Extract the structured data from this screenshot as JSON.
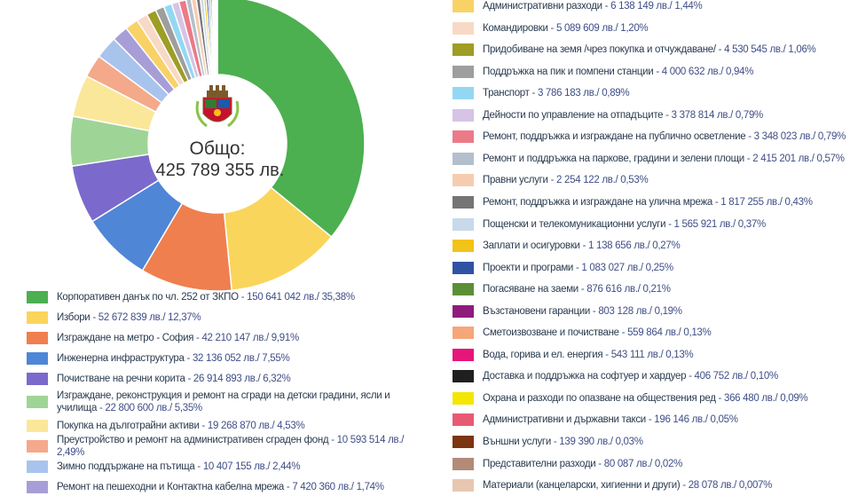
{
  "center": {
    "line1": "Общо:",
    "line2": "425 789 355 лв."
  },
  "chart_data": {
    "type": "pie",
    "total": "425 789 355 лв.",
    "slices": [
      {
        "name": "Корпоративен данък по чл. 252 от ЗКПО",
        "value_text": "150 641 042 лв./ 35,38%",
        "percent": 35.38,
        "color": "#4caf50"
      },
      {
        "name": "Избори",
        "value_text": "52 672 839 лв./ 12,37%",
        "percent": 12.37,
        "color": "#fad55c"
      },
      {
        "name": "Изграждане на метро - София",
        "value_text": "42 210 147 лв./ 9,91%",
        "percent": 9.91,
        "color": "#ef7f4f"
      },
      {
        "name": "Инженерна инфраструктура",
        "value_text": "32 136 052 лв./ 7,55%",
        "percent": 7.55,
        "color": "#4f86d6"
      },
      {
        "name": "Почистване на речни корита",
        "value_text": "26 914 893 лв./ 6,32%",
        "percent": 6.32,
        "color": "#7b6acb"
      },
      {
        "name": "Изграждане, реконструкция и ремонт на сгради на детски градини, ясли и училища",
        "value_text": "22 800 600 лв./ 5,35%",
        "percent": 5.35,
        "color": "#9fd497"
      },
      {
        "name": "Покупка на дълготрайни активи",
        "value_text": "19 268 870 лв./ 4,53%",
        "percent": 4.53,
        "color": "#fbe79a"
      },
      {
        "name": "Преустройство и ремонт на административен сграден фонд",
        "value_text": "10 593 514 лв./ 2,49%",
        "percent": 2.49,
        "color": "#f4a98a"
      },
      {
        "name": "Зимно поддържане на пътища",
        "value_text": "10 407 155 лв./ 2,44%",
        "percent": 2.44,
        "color": "#a9c4ec"
      },
      {
        "name": "Ремонт на пешеходни и Контактна кабелна мрежа",
        "value_text": "7 420 360 лв./ 1,74%",
        "percent": 1.74,
        "color": "#a79ed8"
      },
      {
        "name": "Административни разходи",
        "value_text": "6 138 149 лв./ 1,44%",
        "percent": 1.44,
        "color": "#f9d267"
      },
      {
        "name": "Командировки",
        "value_text": "5 089 609 лв./ 1,20%",
        "percent": 1.2,
        "color": "#f8d9c6"
      },
      {
        "name": "Придобиване на земя /чрез покупка и отчуждаване/",
        "value_text": "4 530 545 лв./ 1,06%",
        "percent": 1.06,
        "color": "#9e9d24"
      },
      {
        "name": "Поддръжка на пик и помпени станции",
        "value_text": "4 000 632 лв./ 0,94%",
        "percent": 0.94,
        "color": "#9e9e9e"
      },
      {
        "name": "Транспорт",
        "value_text": "3 786 183 лв./ 0,89%",
        "percent": 0.89,
        "color": "#93d8f3"
      },
      {
        "name": "Дейности по управление на отпадъците",
        "value_text": "3 378 814 лв./ 0,79%",
        "percent": 0.79,
        "color": "#d5c4e6"
      },
      {
        "name": "Ремонт, поддръжка и изграждане на публично осветление",
        "value_text": "3 348 023 лв./ 0,79%",
        "percent": 0.79,
        "color": "#ec7a88"
      },
      {
        "name": "Ремонт и поддръжка на паркове, градини и зелени площи",
        "value_text": "2 415 201 лв./ 0,57%",
        "percent": 0.57,
        "color": "#b3bfcc"
      },
      {
        "name": "Правни услуги",
        "value_text": "2 254 122 лв./ 0,53%",
        "percent": 0.53,
        "color": "#f6ccb0"
      },
      {
        "name": "Ремонт, поддръжка и изграждане на улична мрежа",
        "value_text": "1 817 255 лв./ 0,43%",
        "percent": 0.43,
        "color": "#757575"
      },
      {
        "name": "Пощенски и телекомуникационни услуги",
        "value_text": "1 565 921 лв./ 0,37%",
        "percent": 0.37,
        "color": "#c7d9ea"
      },
      {
        "name": "Заплати и осигуровки",
        "value_text": "1 138 656 лв./ 0,27%",
        "percent": 0.27,
        "color": "#f2c318"
      },
      {
        "name": "Проекти и програми",
        "value_text": "1 083 027 лв./ 0,25%",
        "percent": 0.25,
        "color": "#2f52a4"
      },
      {
        "name": "Погасяване на заеми",
        "value_text": "876 616 лв./ 0,21%",
        "percent": 0.21,
        "color": "#5b8f37"
      },
      {
        "name": "Възстановени гаранции",
        "value_text": "803 128 лв./ 0,19%",
        "percent": 0.19,
        "color": "#8e1c7c"
      },
      {
        "name": "Сметоизвозване и почистване",
        "value_text": "559 864 лв./ 0,13%",
        "percent": 0.13,
        "color": "#f5a77a"
      },
      {
        "name": "Вода, горива и ел. енергия",
        "value_text": "543 111 лв./ 0,13%",
        "percent": 0.13,
        "color": "#e6157a"
      },
      {
        "name": "Доставка и поддръжка на софтуер и хардуер",
        "value_text": "406 752 лв./ 0,10%",
        "percent": 0.1,
        "color": "#1f1f1f"
      },
      {
        "name": "Охрана и разходи по опазване на обществения ред",
        "value_text": "366 480 лв./ 0,09%",
        "percent": 0.09,
        "color": "#f3e600"
      },
      {
        "name": "Административни и държавни такси",
        "value_text": "196 146 лв./ 0,05%",
        "percent": 0.05,
        "color": "#e85a74"
      },
      {
        "name": "Външни услуги",
        "value_text": "139 390 лв./ 0,03%",
        "percent": 0.03,
        "color": "#7b3510"
      },
      {
        "name": "Представителни разходи",
        "value_text": "80 087 лв./ 0,02%",
        "percent": 0.02,
        "color": "#b38a78"
      },
      {
        "name": "Материали (канцеларски, хигиенни и други)",
        "value_text": "28 078 лв./ 0,007%",
        "percent": 0.007,
        "color": "#e8c7b0"
      }
    ]
  }
}
